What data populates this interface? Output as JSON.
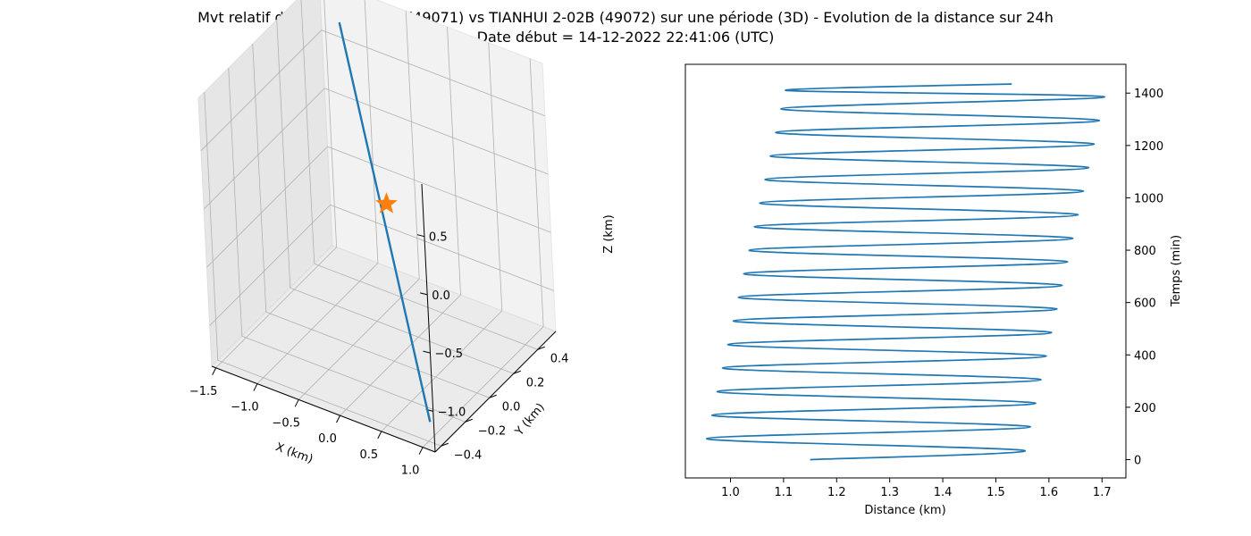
{
  "figure": {
    "title": "Mvt relatif de TIANHUI 2-02A (49071) vs TIANHUI 2-02B (49072) sur une période (3D) - Evolution de la distance sur 24h",
    "subtitle": "Date début = 14-12-2022 22:41:06 (UTC)"
  },
  "chart_data": [
    {
      "type": "line3d",
      "xlabel": "X (km)",
      "ylabel": "Y (km)",
      "zlabel": "Z (km)",
      "xticks": [
        "−1.5",
        "−1.0",
        "−0.5",
        "0.0",
        "0.5",
        "1.0"
      ],
      "yticks": [
        "−0.4",
        "−0.2",
        "0.0",
        "0.2",
        "0.4"
      ],
      "zticks": [
        "−1.0",
        "−0.5",
        "0.0",
        "0.5"
      ],
      "xlim": [
        -1.55,
        1.15
      ],
      "ylim": [
        -0.45,
        0.55
      ],
      "zlim": [
        -1.35,
        0.95
      ],
      "grid": true,
      "series": [
        {
          "points": [
            [
              -1.25,
              0.5,
              0.7
            ],
            [
              0.95,
              -0.35,
              -1.25
            ]
          ],
          "color": "#1f77b4"
        }
      ],
      "marker": {
        "shape": "star",
        "point": [
          0.0,
          0.0,
          0.0
        ],
        "color": "#ff7f0e"
      }
    },
    {
      "type": "line",
      "xlabel": "Distance (km)",
      "ylabel": "Temps (min)",
      "xlim": [
        0.915,
        1.745
      ],
      "ylim": [
        -70,
        1510
      ],
      "xticks": [
        "1.0",
        "1.1",
        "1.2",
        "1.3",
        "1.4",
        "1.5",
        "1.6",
        "1.7"
      ],
      "yticks": [
        "0",
        "200",
        "400",
        "600",
        "800",
        "1000",
        "1200",
        "1400"
      ],
      "yaxis_side": "right",
      "series": [
        {
          "color": "#1f77b4",
          "x": [
            1.15,
            1.553,
            0.955,
            1.565,
            0.965,
            1.575,
            0.975,
            1.585,
            0.985,
            1.595,
            0.995,
            1.605,
            1.005,
            1.615,
            1.015,
            1.625,
            1.025,
            1.635,
            1.035,
            1.645,
            1.045,
            1.655,
            1.055,
            1.665,
            1.065,
            1.675,
            1.075,
            1.685,
            1.085,
            1.695,
            1.095,
            1.705,
            1.105,
            1.53
          ],
          "y": [
            0,
            35,
            80,
            125,
            170,
            215,
            260,
            305,
            350,
            395,
            440,
            485,
            530,
            575,
            620,
            665,
            710,
            755,
            800,
            845,
            890,
            935,
            980,
            1025,
            1070,
            1115,
            1160,
            1205,
            1250,
            1295,
            1340,
            1385,
            1410,
            1435
          ]
        }
      ]
    }
  ]
}
